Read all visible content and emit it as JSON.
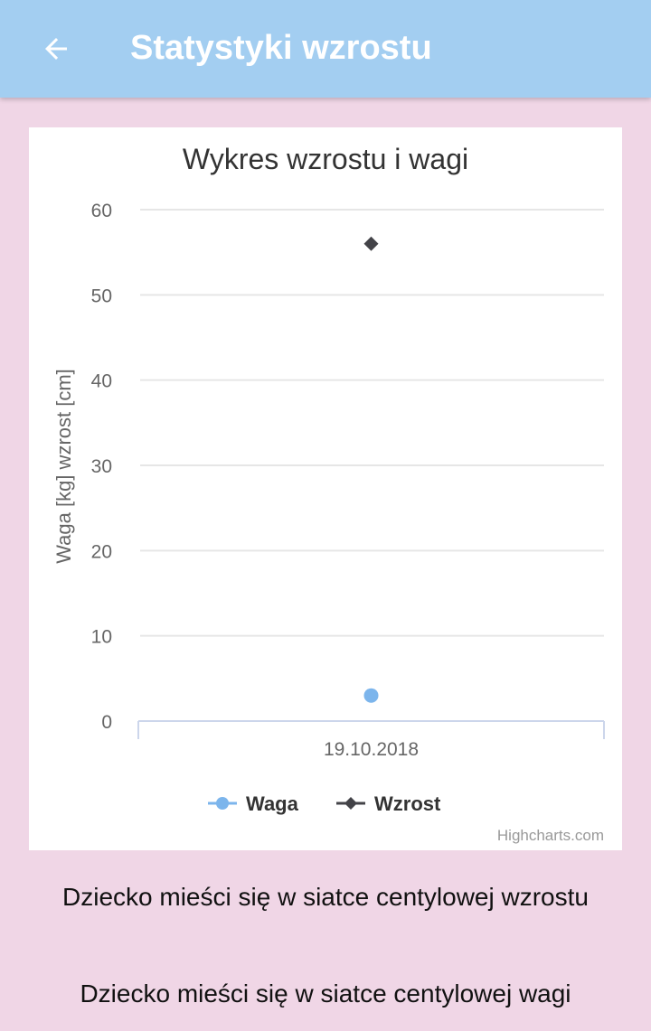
{
  "header": {
    "title": "Statystyki wzrostu",
    "back_icon": "arrow-left-icon"
  },
  "chart_data": {
    "type": "scatter",
    "title": "Wykres wzrostu i wagi",
    "ylabel": "Waga [kg] wzrost [cm]",
    "xlabel": "",
    "categories": [
      "19.10.2018"
    ],
    "ylim": [
      0,
      60
    ],
    "yticks": [
      0,
      10,
      20,
      30,
      40,
      50,
      60
    ],
    "grid": true,
    "legend_position": "bottom",
    "series": [
      {
        "name": "Waga",
        "values": [
          3
        ],
        "color": "#7cb5ec",
        "marker": "circle"
      },
      {
        "name": "Wzrost",
        "values": [
          56
        ],
        "color": "#434348",
        "marker": "diamond"
      }
    ],
    "credits": "Highcharts.com"
  },
  "messages": [
    "Dziecko mieści się w siatce centylowej wzrostu",
    "Dziecko mieści się w siatce centylowej wagi"
  ]
}
